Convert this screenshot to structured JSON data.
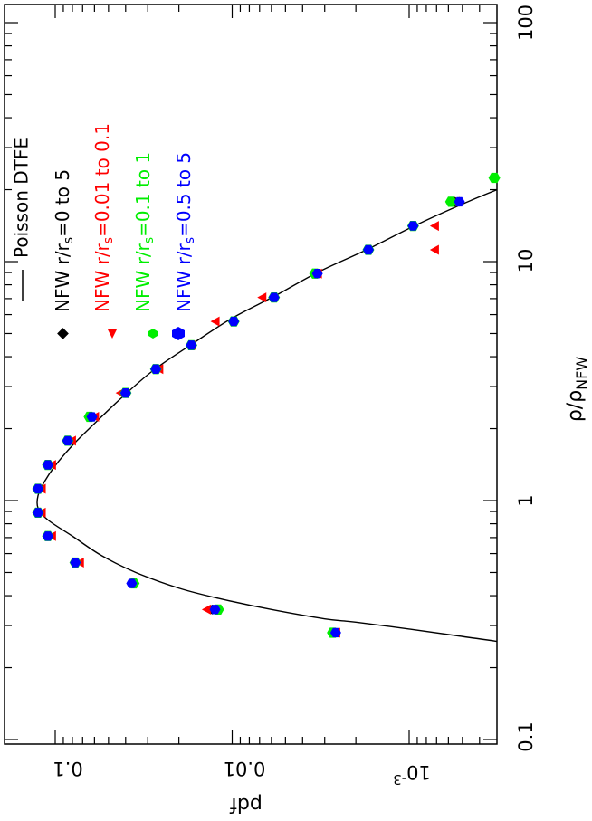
{
  "chart_data": {
    "type": "scatter",
    "orientation": "rotated-90-clockwise",
    "xlabel": "pdf",
    "ylabel_main": "ρ/ρ",
    "ylabel_sub": "NFW",
    "x_scale": "log",
    "y_scale": "log",
    "xlim": [
      0.0002,
      0.17
    ],
    "ylim": [
      0.1,
      100
    ],
    "x_ticks": [
      {
        "value": 0.1,
        "label": "0.1"
      },
      {
        "value": 0.01,
        "label": "0.01"
      },
      {
        "value": 0.001,
        "label": "10",
        "exp": "-3"
      }
    ],
    "y_ticks": [
      {
        "value": 0.1,
        "label": "0.1"
      },
      {
        "value": 1,
        "label": "1"
      },
      {
        "value": 10,
        "label": "10"
      },
      {
        "value": 100,
        "label": "100"
      }
    ],
    "legend": {
      "placement": "top-left",
      "entries": [
        {
          "kind": "line",
          "label": "Poisson DTFE",
          "color": "#000000"
        },
        {
          "kind": "diamond",
          "label_pre": "NFW  r/r",
          "label_sub": "s",
          "label_post": "=0 to 5",
          "color": "#000000"
        },
        {
          "kind": "triangle",
          "label_pre": "NFW  r/r",
          "label_sub": "s",
          "label_post": "=0.01 to 0.1",
          "color": "#ff0000"
        },
        {
          "kind": "hexagon",
          "label_pre": "NFW  r/r",
          "label_sub": "s",
          "label_post": "=0.1 to 1",
          "color": "#00ee00"
        },
        {
          "kind": "hexagon",
          "label_pre": "NFW   r/r",
          "label_sub": "s",
          "label_post": "=0.5 to 5",
          "color": "#0000ff"
        }
      ]
    },
    "curve": {
      "name": "Poisson DTFE",
      "color": "#000000",
      "points": [
        [
          0.00011,
          0.22
        ],
        [
          0.00025,
          0.25
        ],
        [
          0.0005,
          0.27
        ],
        [
          0.001,
          0.29
        ],
        [
          0.002,
          0.31
        ],
        [
          0.003,
          0.32
        ],
        [
          0.006,
          0.35
        ],
        [
          0.012,
          0.39
        ],
        [
          0.02,
          0.43
        ],
        [
          0.035,
          0.5
        ],
        [
          0.055,
          0.59
        ],
        [
          0.08,
          0.71
        ],
        [
          0.11,
          0.83
        ],
        [
          0.125,
          0.93
        ],
        [
          0.125,
          1.05
        ],
        [
          0.115,
          1.2
        ],
        [
          0.1,
          1.4
        ],
        [
          0.08,
          1.7
        ],
        [
          0.06,
          2.1
        ],
        [
          0.042,
          2.7
        ],
        [
          0.028,
          3.5
        ],
        [
          0.017,
          4.5
        ],
        [
          0.01,
          5.8
        ],
        [
          0.0057,
          7.2
        ],
        [
          0.0033,
          9.0
        ],
        [
          0.0017,
          11.3
        ],
        [
          0.0009,
          14.3
        ],
        [
          0.00045,
          18.0
        ],
        [
          0.00023,
          22.0
        ]
      ]
    },
    "series": [
      {
        "name": "NFW r/rs=0 to 5",
        "marker": "diamond",
        "color": "#000000",
        "points": [
          [
            0.0026,
            0.28
          ],
          [
            0.013,
            0.35
          ],
          [
            0.037,
            0.45
          ],
          [
            0.077,
            0.55
          ],
          [
            0.11,
            0.71
          ],
          [
            0.125,
            0.89
          ],
          [
            0.125,
            1.12
          ],
          [
            0.11,
            1.41
          ],
          [
            0.085,
            1.78
          ],
          [
            0.062,
            2.24
          ],
          [
            0.04,
            2.82
          ],
          [
            0.027,
            3.55
          ],
          [
            0.017,
            4.47
          ],
          [
            0.0098,
            5.62
          ],
          [
            0.0058,
            7.08
          ],
          [
            0.0033,
            8.91
          ],
          [
            0.0017,
            11.2
          ],
          [
            0.00095,
            14.1
          ],
          [
            0.00055,
            17.8
          ]
        ]
      },
      {
        "name": "NFW r/rs=0.01 to 0.1",
        "marker": "triangle",
        "color": "#ff0000",
        "points": [
          [
            0.0026,
            0.28
          ],
          [
            0.014,
            0.35
          ],
          [
            0.037,
            0.45
          ],
          [
            0.073,
            0.55
          ],
          [
            0.105,
            0.71
          ],
          [
            0.12,
            0.89
          ],
          [
            0.12,
            1.12
          ],
          [
            0.105,
            1.41
          ],
          [
            0.081,
            1.78
          ],
          [
            0.06,
            2.24
          ],
          [
            0.043,
            2.82
          ],
          [
            0.026,
            3.55
          ],
          [
            0.017,
            4.47
          ],
          [
            0.0125,
            5.62
          ],
          [
            0.0068,
            7.08
          ],
          [
            0.0033,
            8.91
          ],
          [
            0.00072,
            11.2
          ],
          [
            0.00072,
            14.1
          ],
          [
            0.00055,
            17.8
          ]
        ]
      },
      {
        "name": "NFW r/rs=0.1 to 1",
        "marker": "hexagon",
        "color": "#00ee00",
        "points": [
          [
            0.0027,
            0.28
          ],
          [
            0.012,
            0.35
          ],
          [
            0.036,
            0.45
          ],
          [
            0.077,
            0.55
          ],
          [
            0.11,
            0.71
          ],
          [
            0.125,
            0.89
          ],
          [
            0.125,
            1.12
          ],
          [
            0.11,
            1.41
          ],
          [
            0.085,
            1.78
          ],
          [
            0.064,
            2.24
          ],
          [
            0.04,
            2.82
          ],
          [
            0.027,
            3.55
          ],
          [
            0.017,
            4.47
          ],
          [
            0.0098,
            5.62
          ],
          [
            0.0058,
            7.08
          ],
          [
            0.0034,
            8.91
          ],
          [
            0.0017,
            11.2
          ],
          [
            0.00095,
            14.1
          ],
          [
            0.00058,
            17.8
          ],
          [
            0.00033,
            22.4
          ]
        ]
      },
      {
        "name": "NFW r/rs=0.5 to 5",
        "marker": "hexagon",
        "color": "#0000ff",
        "points": [
          [
            0.0026,
            0.28
          ],
          [
            0.0125,
            0.35
          ],
          [
            0.037,
            0.45
          ],
          [
            0.077,
            0.55
          ],
          [
            0.11,
            0.71
          ],
          [
            0.125,
            0.89
          ],
          [
            0.125,
            1.12
          ],
          [
            0.11,
            1.41
          ],
          [
            0.085,
            1.78
          ],
          [
            0.062,
            2.24
          ],
          [
            0.04,
            2.82
          ],
          [
            0.027,
            3.55
          ],
          [
            0.017,
            4.47
          ],
          [
            0.0098,
            5.62
          ],
          [
            0.0058,
            7.08
          ],
          [
            0.0033,
            8.91
          ],
          [
            0.0017,
            11.2
          ],
          [
            0.00095,
            14.1
          ],
          [
            0.00052,
            17.8
          ]
        ]
      }
    ]
  }
}
